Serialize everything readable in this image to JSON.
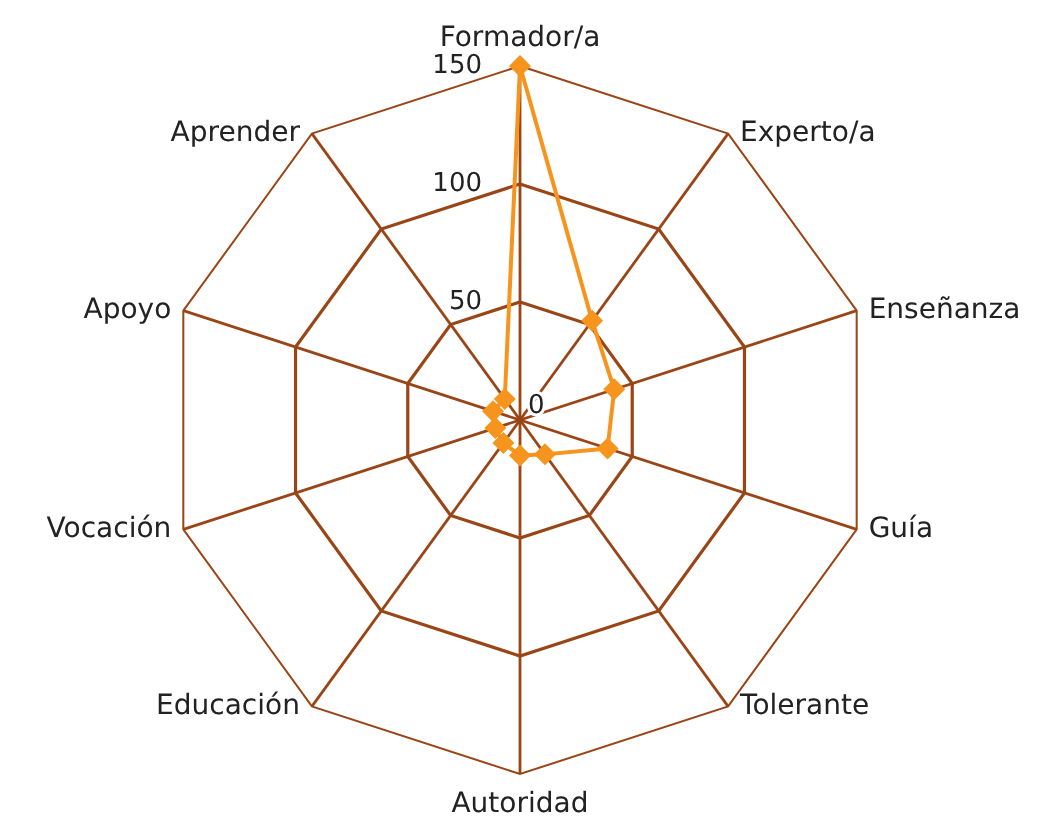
{
  "chart_data": {
    "type": "radar",
    "categories": [
      "Formador/a",
      "Experto/a",
      "Enseñanza",
      "Guía",
      "Tolerante",
      "Autoridad",
      "Educación",
      "Vocación",
      "Apoyo",
      "Aprender"
    ],
    "series": [
      {
        "color": "#f7941d",
        "values": [
          150,
          52,
          42,
          39,
          18,
          15,
          12,
          11,
          12,
          11
        ]
      }
    ],
    "ylim": [
      0,
      150
    ],
    "yticks": [
      0,
      50,
      100,
      150
    ],
    "grid": true,
    "marker": "diamond",
    "line_style": "solid"
  }
}
